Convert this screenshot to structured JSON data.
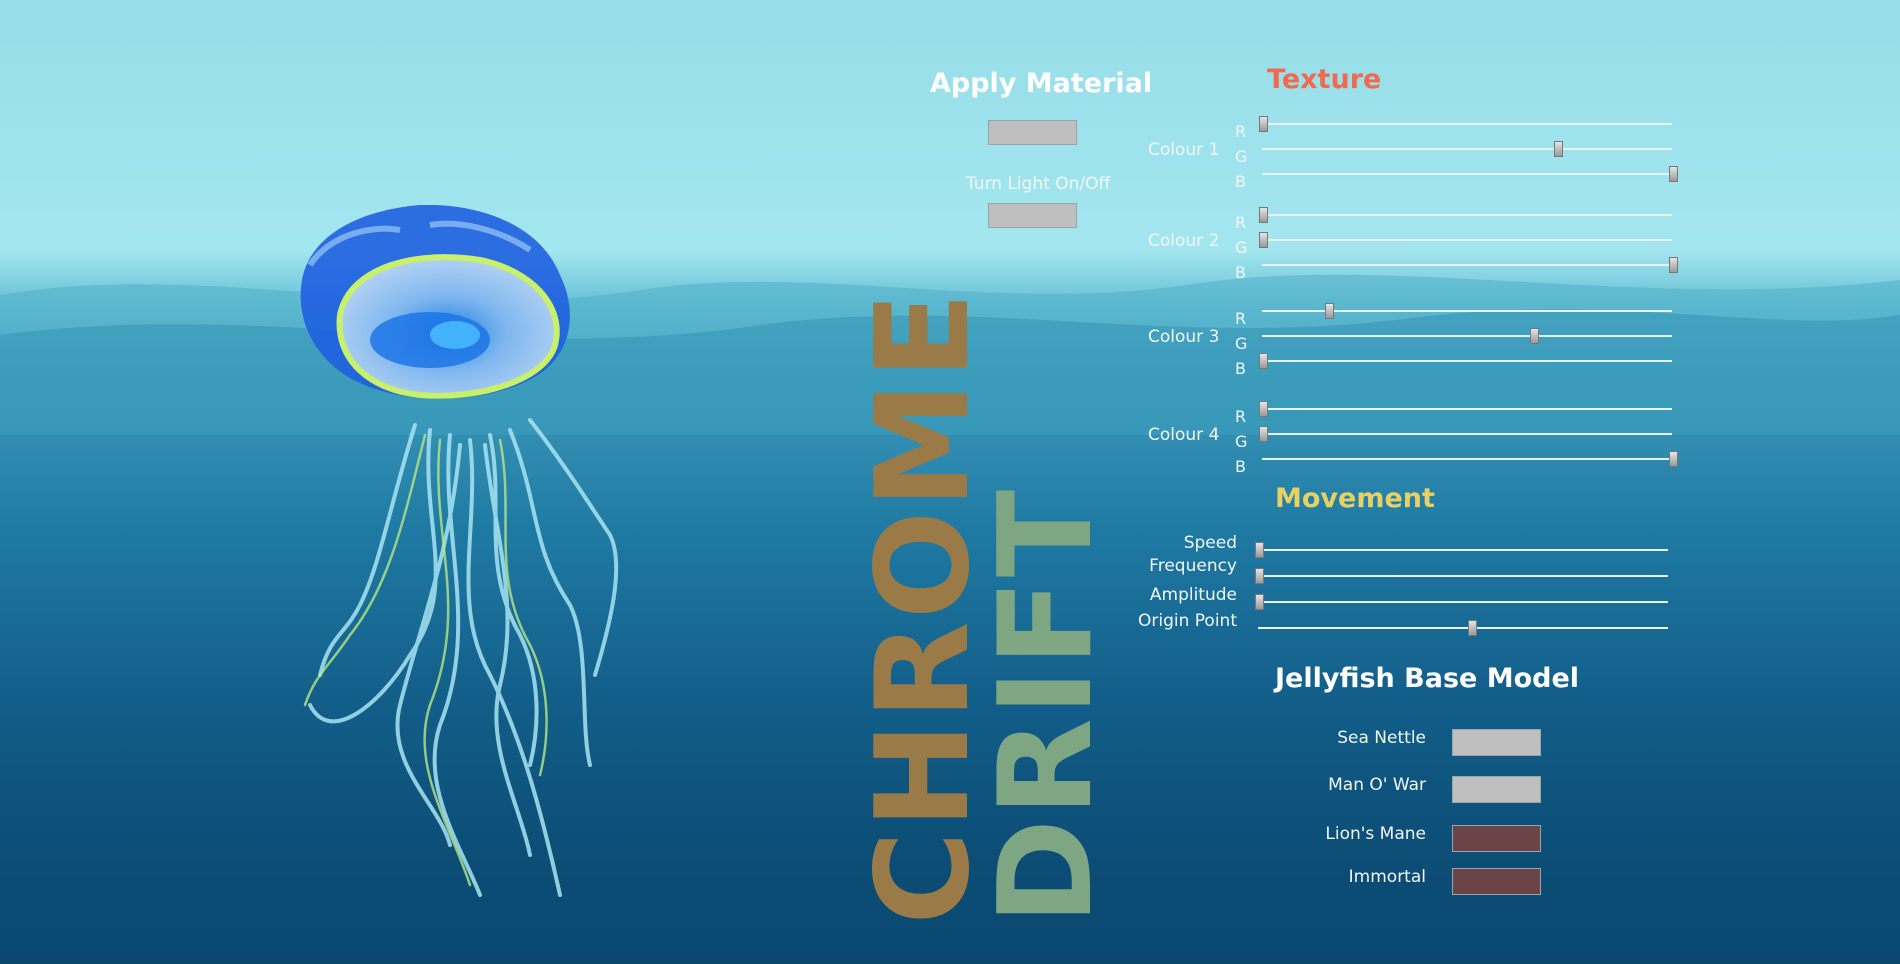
{
  "game": {
    "title_words": [
      "CHROME",
      "DRIFT"
    ]
  },
  "buttons": {
    "apply_material_label": "Apply Material",
    "light_toggle_label": "Turn Light On/Off"
  },
  "texture": {
    "heading": "Texture",
    "heading_color": "#f06a4f",
    "colours": [
      {
        "label": "Colour 1",
        "r": 0.0,
        "g": 0.72,
        "b": 1.0
      },
      {
        "label": "Colour 2",
        "r": 0.0,
        "g": 0.0,
        "b": 1.0
      },
      {
        "label": "Colour 3",
        "r": 0.16,
        "g": 0.66,
        "b": 0.0
      },
      {
        "label": "Colour 4",
        "r": 0.0,
        "g": 0.0,
        "b": 1.0
      }
    ],
    "channel_labels": [
      "R",
      "G",
      "B"
    ]
  },
  "movement": {
    "heading": "Movement",
    "heading_color": "#e8d162",
    "params": [
      {
        "label": "Speed",
        "value": 0.0
      },
      {
        "label": "Frequency",
        "value": 0.0
      },
      {
        "label": "Amplitude",
        "value": 0.0
      },
      {
        "label": "Origin Point",
        "value": 0.52
      }
    ]
  },
  "base_model": {
    "heading": "Jellyfish Base Model",
    "options": [
      {
        "label": "Sea Nettle",
        "color": "#bfbfbf"
      },
      {
        "label": "Man O' War",
        "color": "#bfbfbf"
      },
      {
        "label": "Lion's Mane",
        "color": "#6a4446"
      },
      {
        "label": "Immortal",
        "color": "#6a4446"
      }
    ]
  },
  "colors": {
    "title_chrome": "#9a7a46",
    "title_drift": "#7ea683",
    "ocean_top": "#96dde9",
    "ocean_bottom": "#0a4870"
  }
}
